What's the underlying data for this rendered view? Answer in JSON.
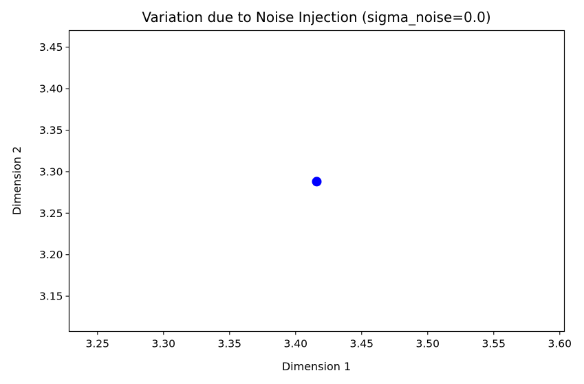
{
  "chart_data": {
    "type": "scatter",
    "title": "Variation due to Noise Injection (sigma_noise=0.0)",
    "xlabel": "Dimension 1",
    "ylabel": "Dimension 2",
    "xlim": [
      3.2285,
      3.6035
    ],
    "ylim": [
      3.1075,
      3.47
    ],
    "xticks": [
      "3.25",
      "3.30",
      "3.35",
      "3.40",
      "3.45",
      "3.50",
      "3.55",
      "3.60"
    ],
    "yticks": [
      "3.15",
      "3.20",
      "3.25",
      "3.30",
      "3.35",
      "3.40",
      "3.45"
    ],
    "grid": false,
    "series": [
      {
        "color": "#0000ff",
        "points": [
          {
            "x": 3.416,
            "y": 3.288
          }
        ]
      }
    ]
  }
}
